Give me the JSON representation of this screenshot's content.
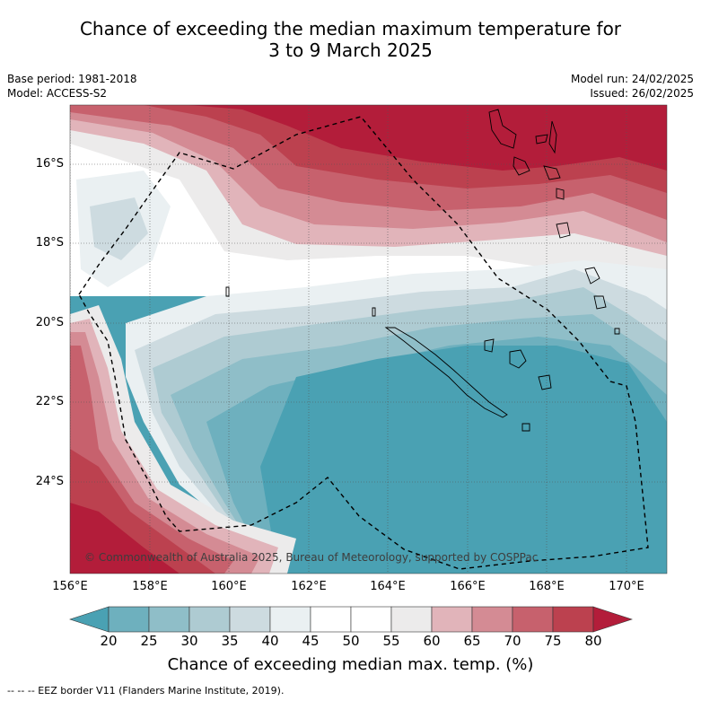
{
  "title_line1": "Chance of exceeding the median maximum temperature for",
  "title_line2": "3 to 9 March 2025",
  "base_period": "Base period: 1981-2018",
  "model": "Model: ACCESS-S2",
  "model_run": "Model run: 24/02/2025",
  "issued": "Issued: 26/02/2025",
  "lat_labels": [
    "16°S",
    "18°S",
    "20°S",
    "22°S",
    "24°S"
  ],
  "lon_labels": [
    "156°E",
    "158°E",
    "160°E",
    "162°E",
    "164°E",
    "166°E",
    "168°E",
    "170°E"
  ],
  "copyright": "© Commonwealth of Australia 2025, Bureau of Meteorology, supported by COSPPac",
  "colorbar": {
    "ticks": [
      "20",
      "25",
      "30",
      "35",
      "40",
      "45",
      "50",
      "55",
      "60",
      "65",
      "70",
      "75",
      "80"
    ],
    "colors": [
      "#4aa1b3",
      "#6eb0be",
      "#8fbec8",
      "#aecbd2",
      "#cddbe0",
      "#eaf0f2",
      "#ffffff",
      "#ffffff",
      "#ecebeb",
      "#e1b4ba",
      "#d48b94",
      "#c7616d",
      "#bc414f",
      "#b31d3a"
    ],
    "label": "Chance of exceeding median max. temp. (%)"
  },
  "legend_text": "-- -- -- EEZ border V11 (Flanders Marine Institute, 2019)."
}
